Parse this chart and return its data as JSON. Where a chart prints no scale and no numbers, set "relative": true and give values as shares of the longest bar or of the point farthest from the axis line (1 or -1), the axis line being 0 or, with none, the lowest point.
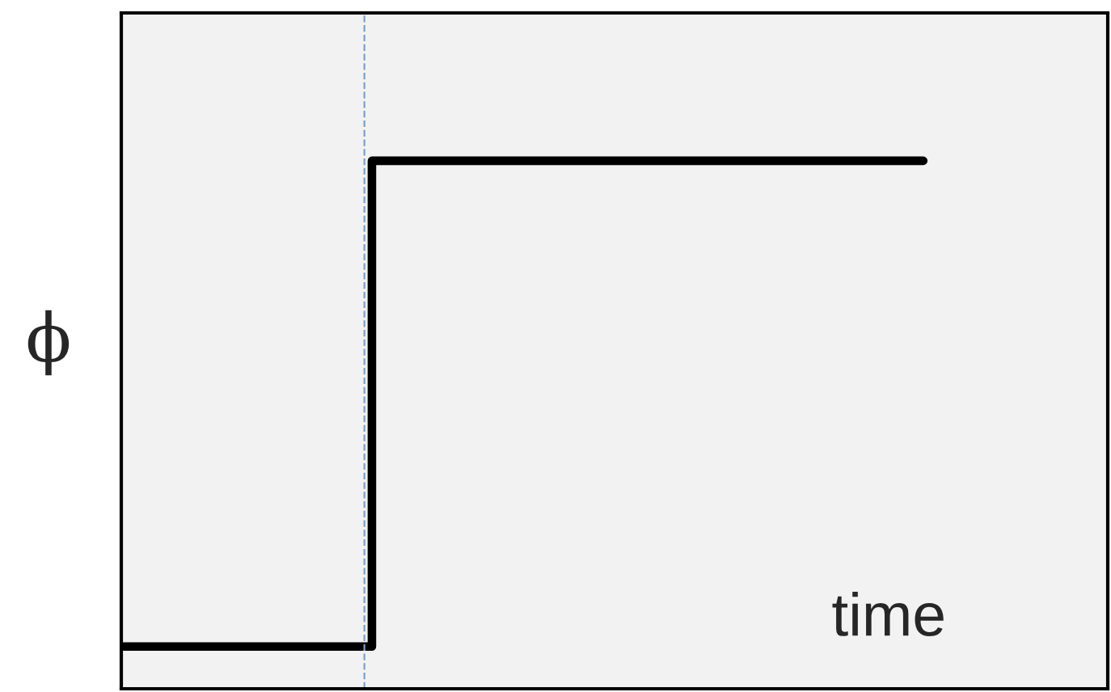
{
  "chart_data": {
    "type": "step",
    "relative": true,
    "xlabel": "time",
    "ylabel": "ϕ",
    "categories": [
      null,
      null,
      null,
      null,
      null,
      null,
      null,
      null,
      null,
      null,
      null,
      null,
      null,
      null,
      null,
      null,
      null
    ],
    "series": [
      {
        "color": "#000000",
        "values": [
          0.08,
          0.08,
          0.08,
          0.08,
          0.08,
          1,
          1,
          1,
          1,
          1,
          1,
          1,
          1,
          1,
          1,
          1,
          1
        ]
      }
    ]
  }
}
